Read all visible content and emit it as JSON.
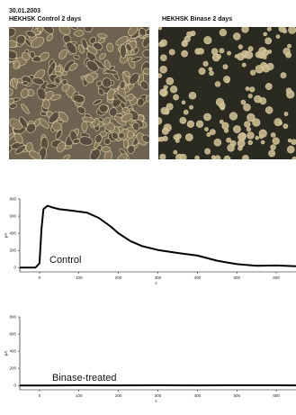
{
  "header": {
    "date": "30.01.2003",
    "left_caption": "HEKHSK Control 2 days",
    "right_caption": "HEKHSK Binase 2 days"
  },
  "images": {
    "left": "phase-contrast micrograph, confluent cells",
    "right": "phase-contrast micrograph, sparse rounded cells"
  },
  "colors": {
    "micro_bg_left": "#6e6250",
    "micro_bg_right": "#2a2a20",
    "cell_bright": "#e0d2a8",
    "trace": "#000000"
  },
  "chart_data": [
    {
      "type": "line",
      "label": "Control",
      "ylabel": "pA",
      "xlabel": "s",
      "xlim": [
        -50,
        650
      ],
      "ylim": [
        -50,
        800
      ],
      "xticks": [
        0,
        100,
        200,
        300,
        400,
        500,
        600
      ],
      "xtick_labels": [
        "0",
        "100",
        "200",
        "300",
        "400",
        "500",
        "600"
      ],
      "yticks": [
        0,
        200,
        400,
        600,
        800
      ],
      "ytick_labels": [
        "0",
        "200",
        "400",
        "600",
        "800"
      ],
      "series": [
        {
          "x": [
            -50,
            -10,
            0,
            5,
            10,
            20,
            30,
            50,
            80,
            120,
            150,
            180,
            200,
            230,
            260,
            300,
            350,
            400,
            450,
            500,
            550,
            600,
            650
          ],
          "y": [
            0,
            0,
            50,
            450,
            680,
            720,
            705,
            680,
            665,
            640,
            580,
            480,
            400,
            310,
            250,
            205,
            170,
            140,
            80,
            40,
            20,
            25,
            15
          ]
        }
      ]
    },
    {
      "type": "line",
      "label": "Binase-treated",
      "ylabel": "pA",
      "xlabel": "s",
      "xlim": [
        -50,
        650
      ],
      "ylim": [
        -50,
        800
      ],
      "xticks": [
        0,
        100,
        200,
        300,
        400,
        500,
        600
      ],
      "xtick_labels": [
        "0",
        "100",
        "200",
        "300",
        "400",
        "500",
        "600"
      ],
      "yticks": [
        0,
        200,
        400,
        600,
        800
      ],
      "ytick_labels": [
        "0",
        "200",
        "400",
        "600",
        "800"
      ],
      "series": [
        {
          "x": [
            -50,
            0,
            100,
            200,
            300,
            400,
            500,
            600,
            650
          ],
          "y": [
            0,
            0,
            2,
            1,
            2,
            1,
            2,
            2,
            1
          ]
        }
      ]
    }
  ]
}
